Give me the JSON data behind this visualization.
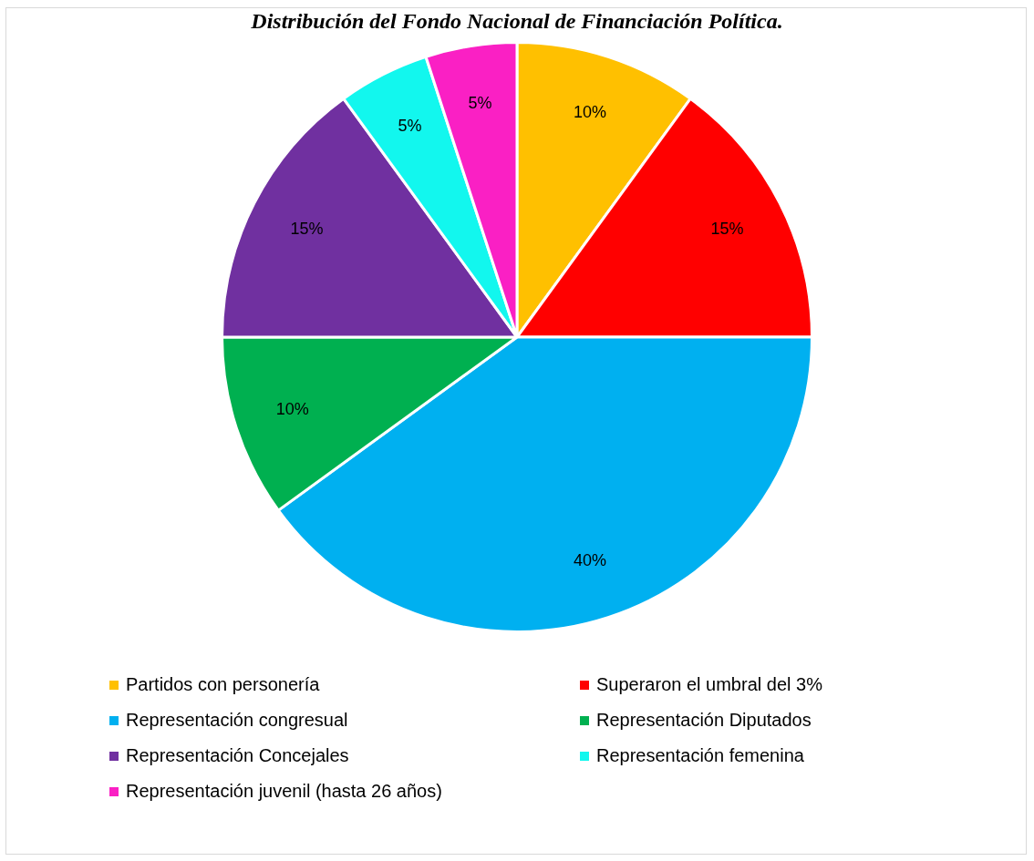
{
  "chart_data": {
    "type": "pie",
    "title": "Distribución del Fondo Nacional de Financiación Política.",
    "categories": [
      "Partidos con personería",
      "Superaron el umbral del 3%",
      "Representación congresual",
      "Representación Diputados",
      "Representación Concejales",
      "Representación femenina",
      "Representación juvenil (hasta 26 años)"
    ],
    "values": [
      10,
      15,
      40,
      10,
      15,
      5,
      5
    ],
    "colors": [
      "#ffc000",
      "#ff0000",
      "#00b0f0",
      "#00b050",
      "#7030a0",
      "#12f7ee",
      "#fa20c4"
    ],
    "value_labels": [
      "10%",
      "15%",
      "40%",
      "10%",
      "15%",
      "5%",
      "5%"
    ],
    "legend": "bottom"
  }
}
